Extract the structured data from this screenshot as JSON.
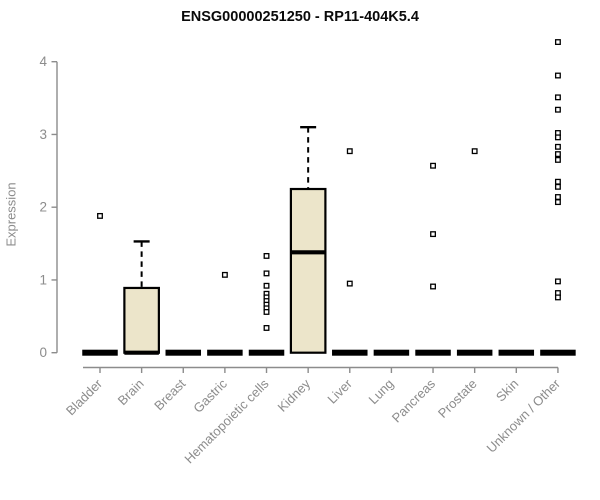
{
  "title": "ENSG00000251250 - RP11-404K5.4",
  "chart_data": {
    "type": "boxplot",
    "title": "ENSG00000251250 - RP11-404K5.4",
    "xlabel": "",
    "ylabel": "Expression",
    "ylim": [
      0,
      4.35
    ],
    "yticks": [
      0,
      1,
      2,
      3,
      4
    ],
    "grid": false,
    "legend": "none",
    "colors": {
      "box_fill": "#ece5ca",
      "box_border": "#000000",
      "median": "#000000",
      "axis": "#8c8c8c",
      "tick_text": "#8c8c8c",
      "title_text": "#0a0a0a",
      "outlier_stroke": "#000000",
      "outlier_fill": "#ffffff"
    },
    "categories": [
      "Bladder",
      "Brain",
      "Breast",
      "Gastric",
      "Hematopoietic cells",
      "Kidney",
      "Liver",
      "Lung",
      "Pancreas",
      "Prostate",
      "Skin",
      "Unknown / Other"
    ],
    "series": [
      {
        "category": "Bladder",
        "q1": 0,
        "median": 0,
        "q3": 0,
        "whisker_low": 0,
        "whisker_high": 0,
        "outliers": [
          1.88
        ]
      },
      {
        "category": "Brain",
        "q1": 0,
        "median": 0,
        "q3": 0.89,
        "whisker_low": 0,
        "whisker_high": 1.53,
        "outliers": []
      },
      {
        "category": "Breast",
        "q1": 0,
        "median": 0,
        "q3": 0,
        "whisker_low": 0,
        "whisker_high": 0,
        "outliers": []
      },
      {
        "category": "Gastric",
        "q1": 0,
        "median": 0,
        "q3": 0,
        "whisker_low": 0,
        "whisker_high": 0,
        "outliers": [
          1.07
        ]
      },
      {
        "category": "Hematopoietic cells",
        "q1": 0,
        "median": 0,
        "q3": 0,
        "whisker_low": 0,
        "whisker_high": 0,
        "outliers": [
          1.33,
          1.09,
          0.92,
          0.81,
          0.76,
          0.71,
          0.66,
          0.61,
          0.56,
          0.34
        ]
      },
      {
        "category": "Kidney",
        "q1": 0,
        "median": 1.38,
        "q3": 2.25,
        "whisker_low": 0,
        "whisker_high": 3.1,
        "outliers": []
      },
      {
        "category": "Liver",
        "q1": 0,
        "median": 0,
        "q3": 0,
        "whisker_low": 0,
        "whisker_high": 0,
        "outliers": [
          2.77,
          0.95
        ]
      },
      {
        "category": "Lung",
        "q1": 0,
        "median": 0,
        "q3": 0,
        "whisker_low": 0,
        "whisker_high": 0,
        "outliers": []
      },
      {
        "category": "Pancreas",
        "q1": 0,
        "median": 0,
        "q3": 0,
        "whisker_low": 0,
        "whisker_high": 0,
        "outliers": [
          2.57,
          1.63,
          0.91
        ]
      },
      {
        "category": "Prostate",
        "q1": 0,
        "median": 0,
        "q3": 0,
        "whisker_low": 0,
        "whisker_high": 0,
        "outliers": [
          2.77
        ]
      },
      {
        "category": "Skin",
        "q1": 0,
        "median": 0,
        "q3": 0,
        "whisker_low": 0,
        "whisker_high": 0,
        "outliers": []
      },
      {
        "category": "Unknown / Other",
        "q1": 0,
        "median": 0,
        "q3": 0,
        "whisker_low": 0,
        "whisker_high": 0,
        "outliers": [
          4.27,
          3.81,
          3.51,
          3.34,
          3.02,
          2.96,
          2.83,
          2.73,
          2.65,
          2.35,
          2.28,
          2.14,
          2.07,
          0.98,
          0.82,
          0.76
        ]
      }
    ]
  }
}
